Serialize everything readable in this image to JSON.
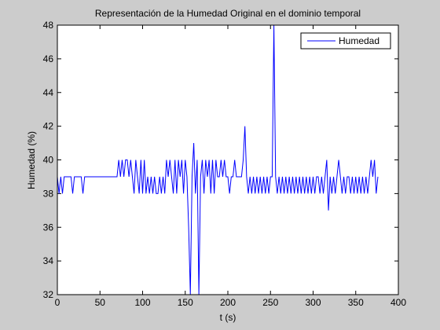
{
  "chart_data": {
    "type": "line",
    "title": "Representación de la Humedad Original en el dominio temporal",
    "xlabel": "t (s)",
    "ylabel": "Humedad (%)",
    "x": [
      0,
      2,
      4,
      6,
      8,
      10,
      12,
      14,
      16,
      18,
      20,
      22,
      24,
      26,
      28,
      30,
      32,
      34,
      36,
      38,
      40,
      42,
      44,
      46,
      48,
      50,
      52,
      54,
      56,
      58,
      60,
      62,
      64,
      66,
      68,
      70,
      72,
      74,
      76,
      78,
      80,
      82,
      84,
      86,
      88,
      90,
      92,
      94,
      96,
      98,
      100,
      102,
      104,
      106,
      108,
      110,
      112,
      114,
      116,
      118,
      120,
      122,
      124,
      126,
      128,
      130,
      132,
      134,
      136,
      138,
      140,
      142,
      144,
      146,
      148,
      150,
      152,
      154,
      156,
      158,
      160,
      162,
      164,
      166,
      168,
      170,
      172,
      174,
      176,
      178,
      180,
      182,
      184,
      186,
      188,
      190,
      192,
      194,
      196,
      198,
      200,
      202,
      204,
      206,
      208,
      210,
      212,
      214,
      216,
      218,
      220,
      222,
      224,
      226,
      228,
      230,
      232,
      234,
      236,
      238,
      240,
      242,
      244,
      246,
      248,
      250,
      252,
      254,
      256,
      258,
      260,
      262,
      264,
      266,
      268,
      270,
      272,
      274,
      276,
      278,
      280,
      282,
      284,
      286,
      288,
      290,
      292,
      294,
      296,
      298,
      300,
      302,
      304,
      306,
      308,
      310,
      312,
      314,
      316,
      318,
      320,
      322,
      324,
      326,
      328,
      330,
      332,
      334,
      336,
      338,
      340,
      342,
      344,
      346,
      348,
      350,
      352,
      354,
      356,
      358,
      360,
      362,
      364,
      366,
      368,
      370,
      372,
      374,
      376
    ],
    "series": [
      {
        "name": "Humedad",
        "color": "#0000ff",
        "values": [
          39,
          38,
          39,
          38,
          39,
          39,
          39,
          39,
          39,
          38,
          39,
          39,
          39,
          39,
          39,
          38,
          39,
          39,
          39,
          39,
          39,
          39,
          39,
          39,
          39,
          39,
          39,
          39,
          39,
          39,
          39,
          39,
          39,
          39,
          39,
          39,
          40,
          39,
          40,
          39,
          40,
          40,
          39,
          40,
          39,
          38,
          40,
          39,
          38,
          40,
          38,
          40,
          38,
          39,
          38,
          39,
          38,
          39,
          38,
          38,
          39,
          38,
          39,
          38,
          40,
          39,
          40,
          39,
          38,
          40,
          38,
          40,
          39,
          40,
          38,
          40,
          39,
          36,
          32,
          39,
          41,
          38,
          40,
          32,
          39,
          40,
          38,
          40,
          39,
          40,
          38,
          40,
          38,
          40,
          39,
          39,
          40,
          39,
          40,
          39,
          39,
          38,
          39,
          39,
          40,
          39,
          39,
          39,
          39,
          40,
          42,
          39,
          38,
          39,
          38,
          39,
          38,
          39,
          38,
          39,
          38,
          39,
          38,
          39,
          38,
          39,
          39,
          48,
          39,
          38,
          39,
          38,
          39,
          38,
          39,
          38,
          39,
          38,
          39,
          38,
          39,
          38,
          39,
          38,
          39,
          38,
          39,
          38,
          39,
          38,
          39,
          38,
          39,
          39,
          38,
          39,
          38,
          39,
          40,
          37,
          39,
          38,
          39,
          38,
          39,
          40,
          39,
          38,
          39,
          38,
          39,
          39,
          38,
          39,
          38,
          39,
          38,
          39,
          38,
          39,
          38,
          39,
          38,
          39,
          40,
          39,
          40,
          38,
          39
        ]
      }
    ],
    "xlim": [
      0,
      400
    ],
    "xticks": [
      0,
      50,
      100,
      150,
      200,
      250,
      300,
      350,
      400
    ],
    "ylim": [
      32,
      48
    ],
    "yticks": [
      32,
      34,
      36,
      38,
      40,
      42,
      44,
      46,
      48
    ],
    "grid": false,
    "legend": "northeast"
  }
}
